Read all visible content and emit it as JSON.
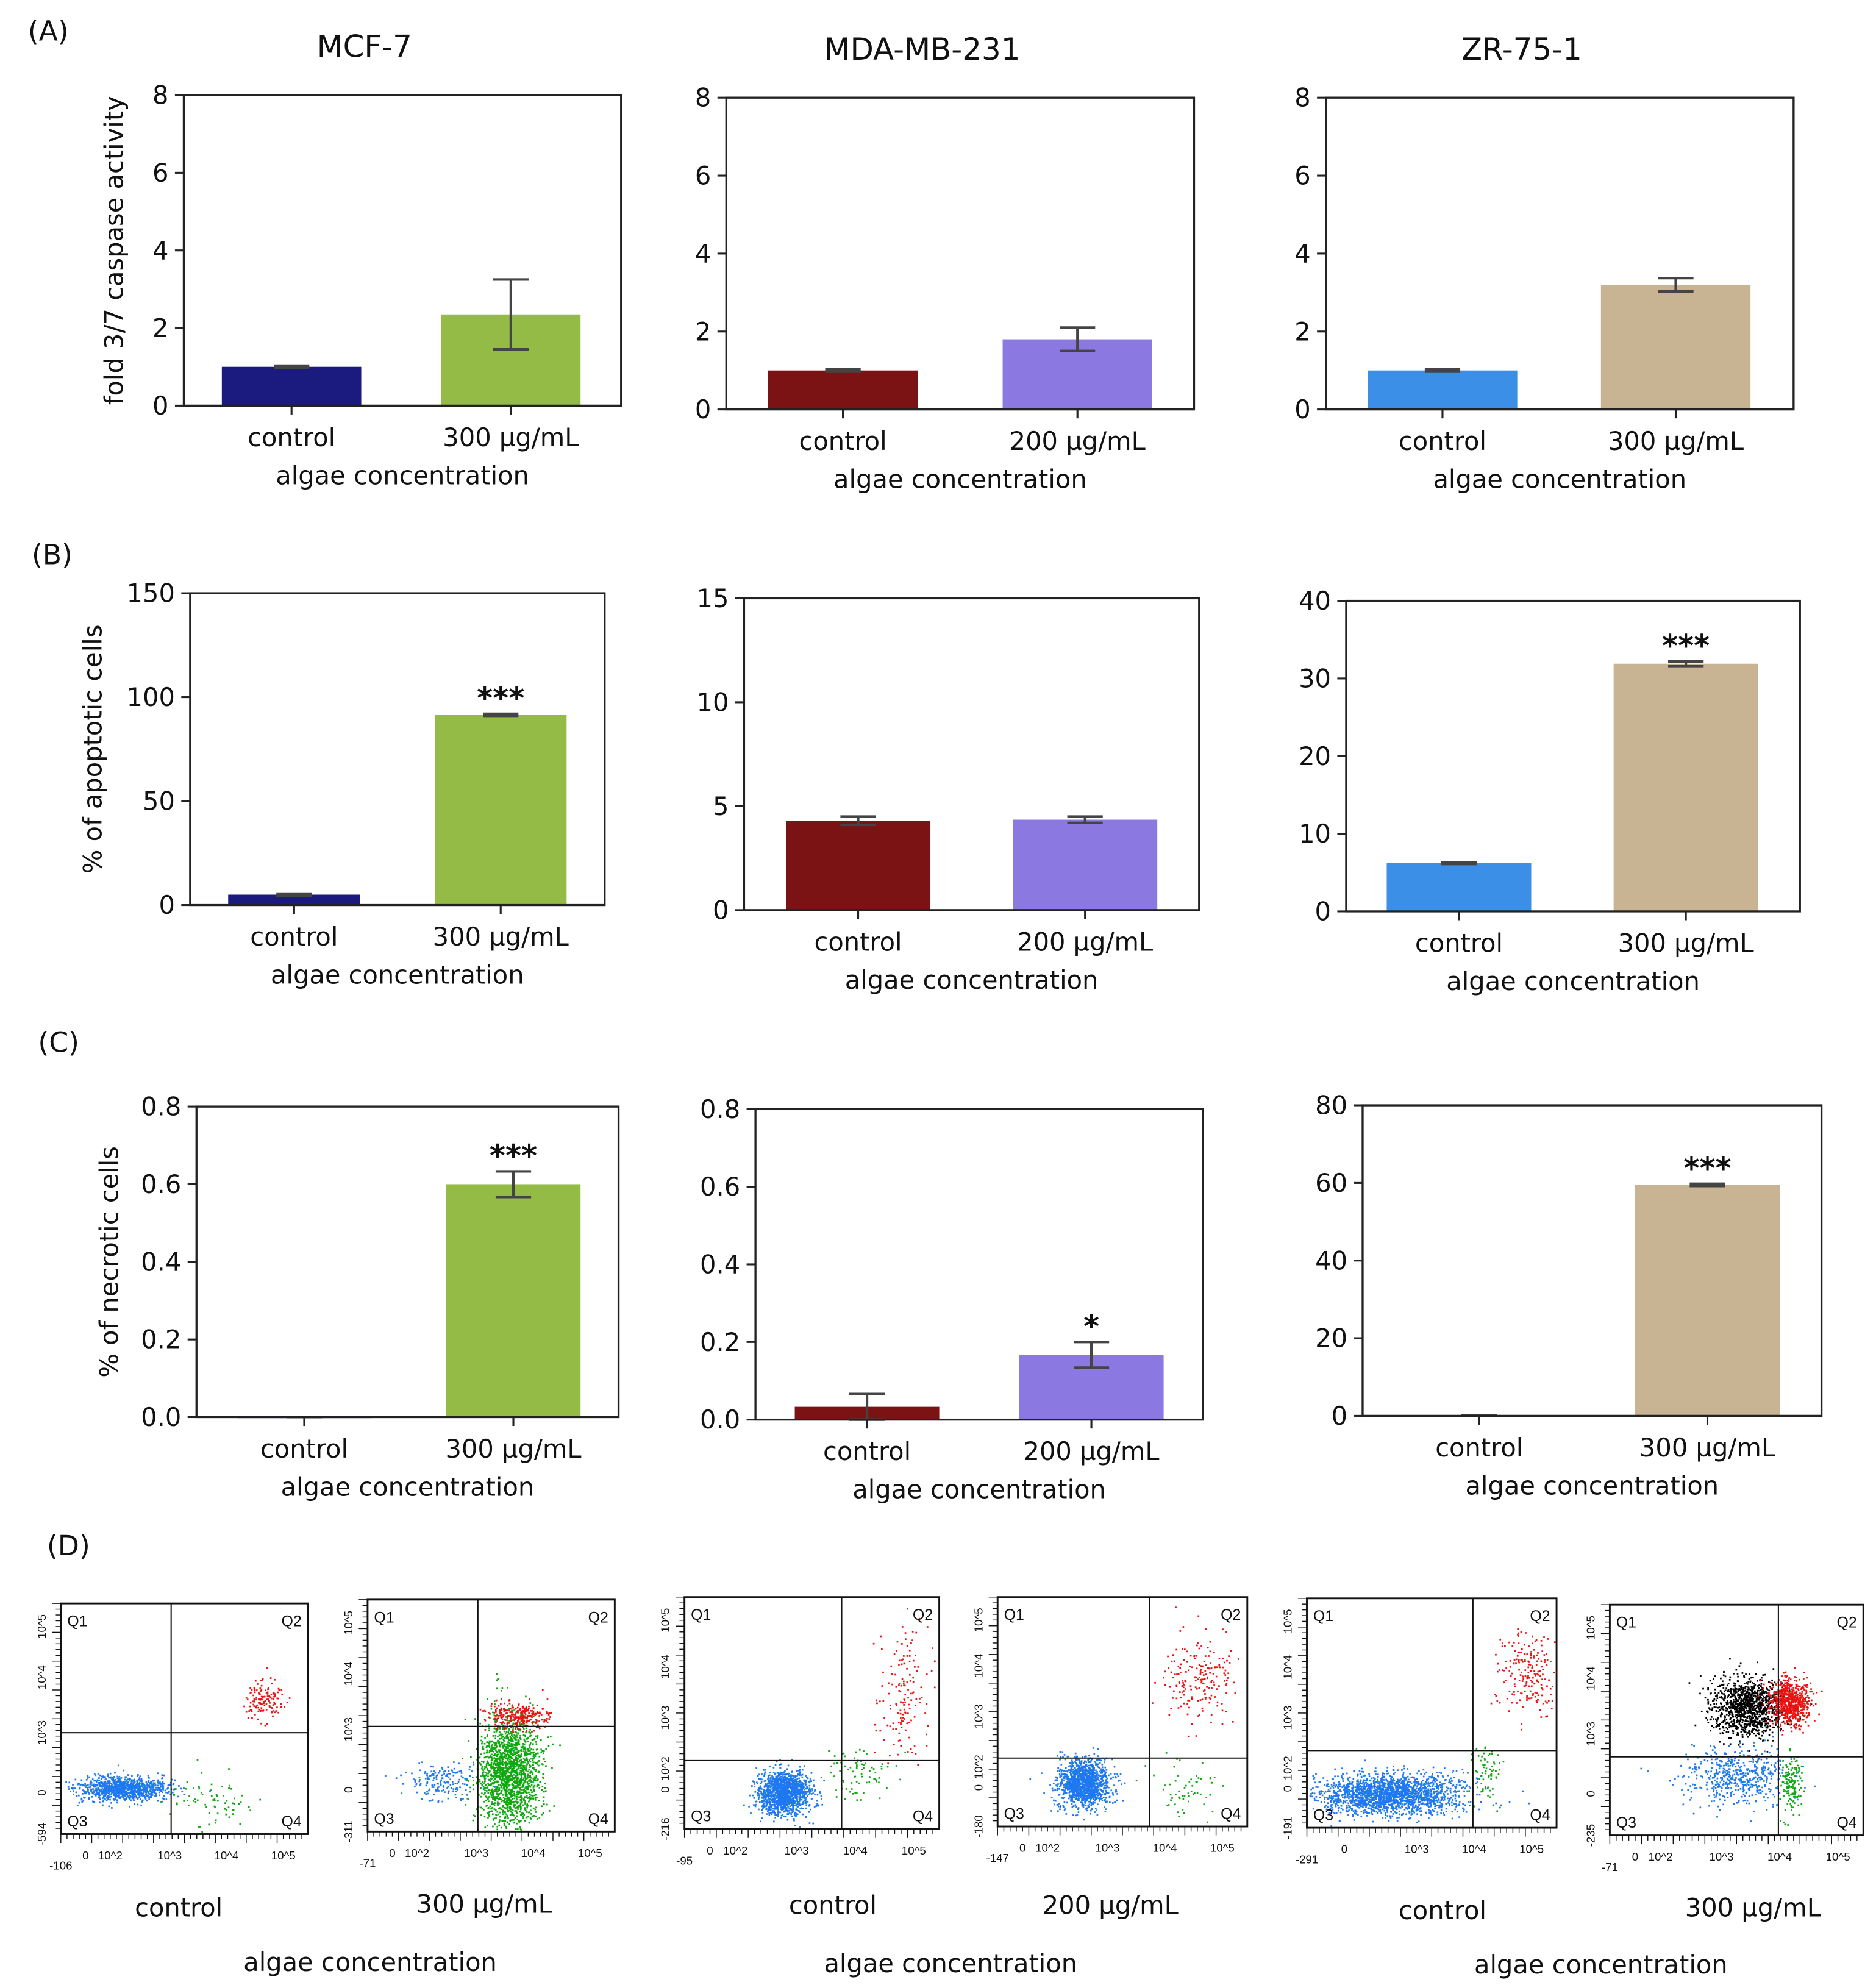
{
  "panel_labels": [
    "(A)",
    "(B)",
    "(C)",
    "(D)"
  ],
  "colors": {
    "mcf7": "#1b1b7f",
    "mcf7_treated": "#94bb46",
    "mda": "#7b1214",
    "mda_treated": "#8b78e0",
    "zr": "#3b8fe6",
    "zr_treated": "#c8b393"
  },
  "chart_data": [
    {
      "type": "bar",
      "panel": "(A)",
      "title": "MCF-7",
      "ylabel": "fold 3/7 caspase activity",
      "xlabel": "algae concentration",
      "categories": [
        "control",
        "300 µg/mL"
      ],
      "values": [
        1.0,
        2.35
      ],
      "errors": [
        0.03,
        0.9
      ],
      "significance": [
        "",
        ""
      ],
      "ylim": [
        0,
        8
      ],
      "yticks": [
        "0",
        "2",
        "4",
        "6",
        "8"
      ],
      "colors": [
        "#1b1b7f",
        "#94bb46"
      ],
      "grid": false
    },
    {
      "type": "bar",
      "panel": "(A)",
      "title": "MDA-MB-231",
      "ylabel": "",
      "xlabel": "algae concentration",
      "categories": [
        "control",
        "200 µg/mL"
      ],
      "values": [
        1.0,
        1.8
      ],
      "errors": [
        0.03,
        0.3
      ],
      "significance": [
        "",
        ""
      ],
      "ylim": [
        0,
        8
      ],
      "yticks": [
        "0",
        "2",
        "4",
        "6",
        "8"
      ],
      "colors": [
        "#7b1214",
        "#8b78e0"
      ],
      "grid": false
    },
    {
      "type": "bar",
      "panel": "(A)",
      "title": "ZR-75-1",
      "ylabel": "",
      "xlabel": "algae concentration",
      "categories": [
        "control",
        "300 µg/mL"
      ],
      "values": [
        1.0,
        3.2
      ],
      "errors": [
        0.03,
        0.17
      ],
      "significance": [
        "",
        ""
      ],
      "ylim": [
        0,
        8
      ],
      "yticks": [
        "0",
        "2",
        "4",
        "6",
        "8"
      ],
      "colors": [
        "#3b8fe6",
        "#c8b393"
      ],
      "grid": false
    },
    {
      "type": "bar",
      "panel": "(B)",
      "title": "",
      "ylabel": "% of apoptotic cells",
      "xlabel": "algae concentration",
      "categories": [
        "control",
        "300 µg/mL"
      ],
      "values": [
        5.0,
        91.5
      ],
      "errors": [
        0.5,
        0.5
      ],
      "significance": [
        "",
        "***"
      ],
      "ylim": [
        0,
        150
      ],
      "yticks": [
        "0",
        "50",
        "100",
        "150"
      ],
      "colors": [
        "#1b1b7f",
        "#94bb46"
      ],
      "grid": false
    },
    {
      "type": "bar",
      "panel": "(B)",
      "title": "",
      "ylabel": "",
      "xlabel": "algae concentration",
      "categories": [
        "control",
        "200 µg/mL"
      ],
      "values": [
        4.3,
        4.35
      ],
      "errors": [
        0.2,
        0.15
      ],
      "significance": [
        "",
        ""
      ],
      "ylim": [
        0,
        15
      ],
      "yticks": [
        "0",
        "5",
        "10",
        "15"
      ],
      "colors": [
        "#7b1214",
        "#8b78e0"
      ],
      "grid": false
    },
    {
      "type": "bar",
      "panel": "(B)",
      "title": "",
      "ylabel": "",
      "xlabel": "algae concentration",
      "categories": [
        "control",
        "300 µg/mL"
      ],
      "values": [
        6.2,
        31.9
      ],
      "errors": [
        0.1,
        0.3
      ],
      "significance": [
        "",
        "***"
      ],
      "ylim": [
        0,
        40
      ],
      "yticks": [
        "0",
        "10",
        "20",
        "30",
        "40"
      ],
      "colors": [
        "#3b8fe6",
        "#c8b393"
      ],
      "grid": false
    },
    {
      "type": "bar",
      "panel": "(C)",
      "title": "",
      "ylabel": "% of necrotic cells",
      "xlabel": "algae concentration",
      "categories": [
        "control",
        "300 µg/mL"
      ],
      "values": [
        0.0,
        0.6
      ],
      "errors": [
        0.0,
        0.033
      ],
      "significance": [
        "",
        "***"
      ],
      "ylim": [
        0,
        0.8
      ],
      "yticks": [
        "0.0",
        "0.2",
        "0.4",
        "0.6",
        "0.8"
      ],
      "colors": [
        "#1b1b7f",
        "#94bb46"
      ],
      "grid": false
    },
    {
      "type": "bar",
      "panel": "(C)",
      "title": "",
      "ylabel": "",
      "xlabel": "algae concentration",
      "categories": [
        "control",
        "200 µg/mL"
      ],
      "values": [
        0.033,
        0.167
      ],
      "errors": [
        0.033,
        0.033
      ],
      "significance": [
        "",
        "*"
      ],
      "ylim": [
        0,
        0.8
      ],
      "yticks": [
        "0.0",
        "0.2",
        "0.4",
        "0.6",
        "0.8"
      ],
      "colors": [
        "#7b1214",
        "#8b78e0"
      ],
      "grid": false
    },
    {
      "type": "bar",
      "panel": "(C)",
      "title": "",
      "ylabel": "",
      "xlabel": "algae concentration",
      "categories": [
        "control",
        "300 µg/mL"
      ],
      "values": [
        0.2,
        59.5
      ],
      "errors": [
        0.0,
        0.3
      ],
      "significance": [
        "",
        "***"
      ],
      "ylim": [
        0,
        80
      ],
      "yticks": [
        "0",
        "20",
        "40",
        "60",
        "80"
      ],
      "colors": [
        "#3b8fe6",
        "#c8b393"
      ],
      "grid": false
    }
  ],
  "flow_data": {
    "quadrants": [
      "Q1",
      "Q2",
      "Q3",
      "Q4"
    ],
    "group_xlabel": "algae concentration",
    "plots": [
      {
        "label": "control",
        "xticks": [
          "-106",
          "0",
          "10^2",
          "10^3",
          "10^4",
          "10^5"
        ],
        "yticks": [
          "10^5",
          "10^4",
          "10^3",
          "0",
          "-594"
        ]
      },
      {
        "label": "300 µg/mL",
        "xticks": [
          "-71",
          "0",
          "10^2",
          "10^3",
          "10^4",
          "10^5"
        ],
        "yticks": [
          "10^5",
          "10^4",
          "10^3",
          "0",
          "-311"
        ]
      },
      {
        "label": "control",
        "xticks": [
          "-95",
          "0",
          "10^2",
          "10^3",
          "10^4",
          "10^5"
        ],
        "yticks": [
          "10^5",
          "10^4",
          "10^3",
          "10^2",
          "0",
          "-216"
        ]
      },
      {
        "label": "200 µg/mL",
        "xticks": [
          "-147",
          "0",
          "10^2",
          "10^3",
          "10^4",
          "10^5"
        ],
        "yticks": [
          "10^5",
          "10^4",
          "10^3",
          "10^2",
          "0",
          "-180"
        ]
      },
      {
        "label": "control",
        "xticks": [
          "-291",
          "0",
          "10^3",
          "10^4",
          "10^5"
        ],
        "yticks": [
          "10^5",
          "10^4",
          "10^3",
          "10^2",
          "0",
          "-191"
        ]
      },
      {
        "label": "300 µg/mL",
        "xticks": [
          "-71",
          "0",
          "10^2",
          "10^3",
          "10^4",
          "10^5"
        ],
        "yticks": [
          "10^5",
          "10^4",
          "10^3",
          "0",
          "-235"
        ]
      }
    ],
    "population_colors": {
      "live": "#1e78f0",
      "early_apoptotic": "#10a810",
      "late_apoptotic": "#ee1111",
      "necrotic": "#000000"
    }
  }
}
